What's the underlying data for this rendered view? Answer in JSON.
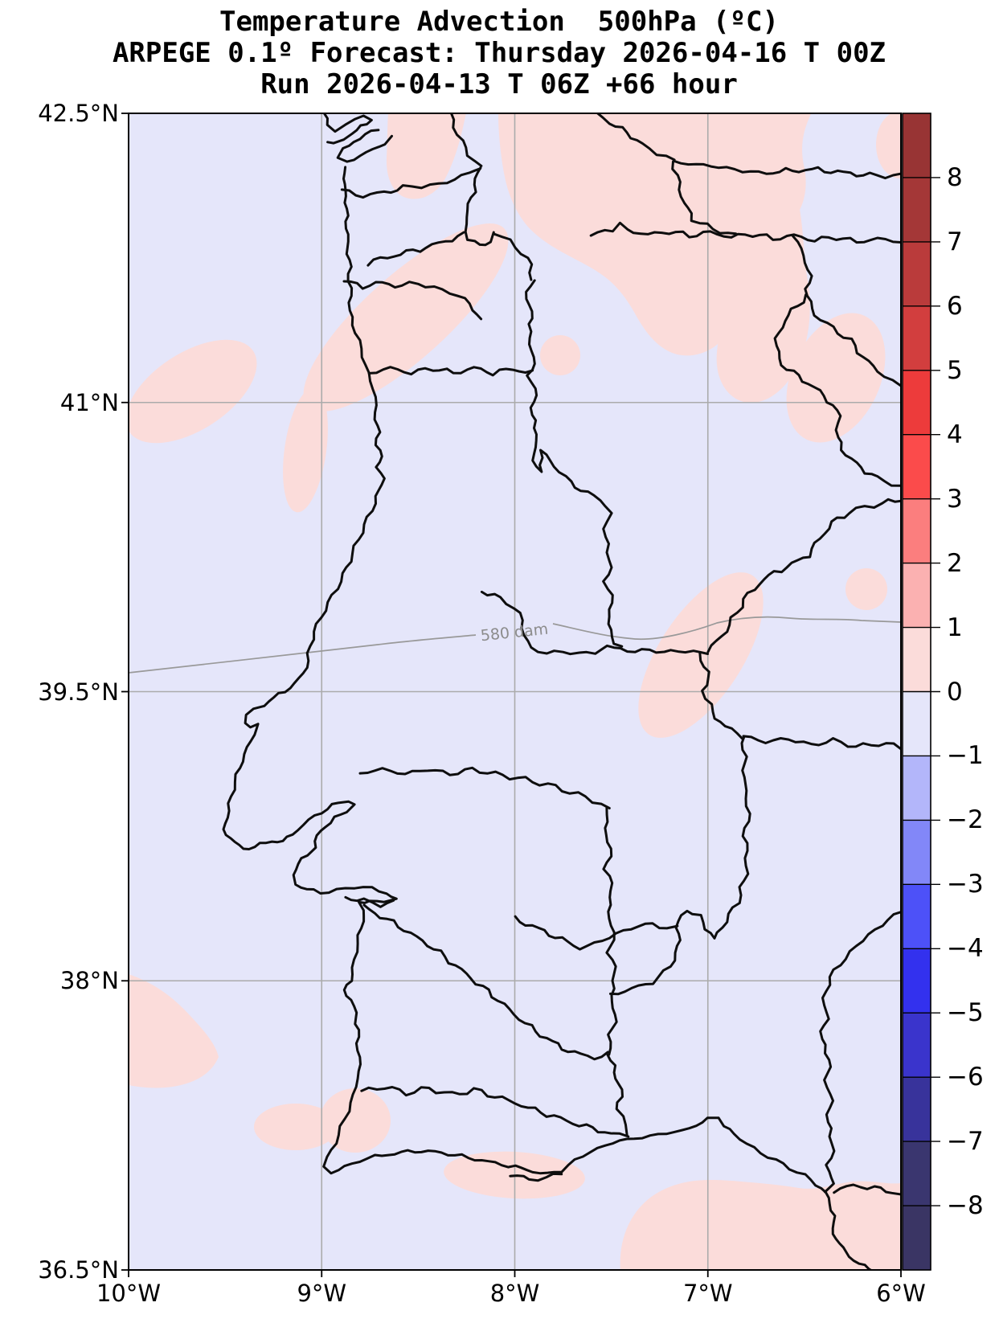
{
  "title": {
    "line1": "Temperature Advection  500hPa (ºC)",
    "line2": "ARPEGE 0.1º Forecast: Thursday 2026-04-16 T 00Z",
    "line3": "Run 2026-04-13 T 06Z +66 hour"
  },
  "map": {
    "y_ticks": [
      {
        "label": "42.5°N",
        "lat": 42.5
      },
      {
        "label": "41°N",
        "lat": 41
      },
      {
        "label": "39.5°N",
        "lat": 39.5
      },
      {
        "label": "38°N",
        "lat": 38
      },
      {
        "label": "36.5°N",
        "lat": 36.5
      }
    ],
    "x_ticks": [
      {
        "label": "10°W",
        "lon": -10
      },
      {
        "label": "9°W",
        "lon": -9
      },
      {
        "label": "8°W",
        "lon": -8
      },
      {
        "label": "7°W",
        "lon": -7
      },
      {
        "label": "6°W",
        "lon": -6
      }
    ],
    "grid": {
      "lats": [
        41,
        39.5,
        38
      ],
      "lons": [
        -9,
        -8,
        -7
      ]
    },
    "contour_label": "580 dam"
  },
  "colorbar": {
    "tick_labels": [
      "8",
      "7",
      "6",
      "5",
      "4",
      "3",
      "2",
      "1",
      "0",
      "−1",
      "−2",
      "−3",
      "−4",
      "−5",
      "−6",
      "−7",
      "−8"
    ],
    "band_colors": [
      "#983434",
      "#A43737",
      "#BA3B3B",
      "#D23E3E",
      "#ED3B3B",
      "#FB4B4B",
      "#FB7E7E",
      "#FBB1B1",
      "#FBDCDA",
      "#E5E6FA",
      "#B3B6FA",
      "#8287F8",
      "#4D51F8",
      "#3331EE",
      "#3A34CC",
      "#38339B",
      "#3A366F",
      "#3A3564"
    ]
  },
  "colors": {
    "map_background": "#E5E6FA",
    "positive_advection_fill": "#FBDCDA",
    "gridline": "#ABABAB",
    "contour_line": "#999999",
    "boundary_line": "#0E0E0E",
    "frame": "#000000"
  },
  "chart_data": {
    "type": "heatmap",
    "title": "Temperature Advection  500hPa (ºC)",
    "model": "ARPEGE 0.1º",
    "valid_time": "Thursday 2026-04-16 T 00Z",
    "run": "Run 2026-04-13 T 06Z +66 hour",
    "lon_axis": {
      "tick_labels": [
        "10°W",
        "9°W",
        "8°W",
        "7°W",
        "6°W"
      ],
      "range_deg": [
        -10,
        -6
      ]
    },
    "lat_axis": {
      "tick_labels": [
        "36.5°N",
        "38°N",
        "39.5°N",
        "41°N",
        "42.5°N"
      ],
      "range_deg": [
        36.5,
        42.5
      ]
    },
    "colorbar": {
      "ticks": [
        8,
        7,
        6,
        5,
        4,
        3,
        2,
        1,
        0,
        -1,
        -2,
        -3,
        -4,
        -5,
        -6,
        -7,
        -8
      ],
      "units": "ºC",
      "position": "right"
    },
    "contours": [
      {
        "label": "580 dam",
        "value": 580,
        "field": "500hPa geopotential height"
      }
    ],
    "field_summary": "Advection mostly between -1 and 0 ºC (pale lavender); patches of 0 to 1 ºC (pale pink) over NW Spain, northern interior Portugal, Atlantic west of 41°N, and along the southern coast / SE corner."
  }
}
